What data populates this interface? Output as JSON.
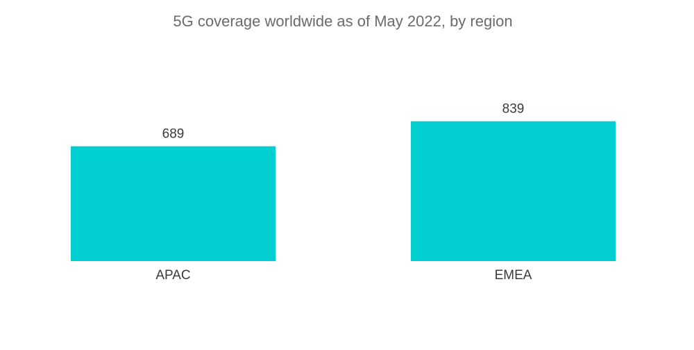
{
  "chart_data": {
    "type": "bar",
    "title": "5G coverage worldwide as of May 2022, by region",
    "categories": [
      "APAC",
      "EMEA"
    ],
    "values": [
      689,
      839
    ],
    "xlabel": "",
    "ylabel": "",
    "ylim": [
      0,
      1000
    ],
    "grid": false,
    "legend": "none",
    "bar_color": "#00ced1"
  }
}
